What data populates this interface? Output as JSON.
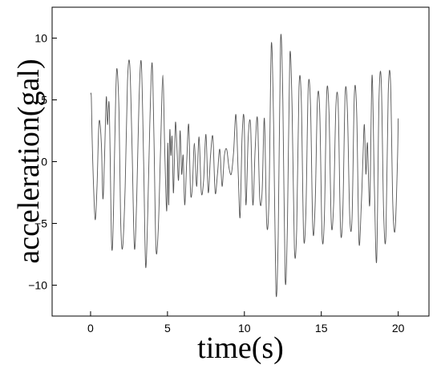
{
  "chart_data": {
    "type": "line",
    "xlabel": "time(s)",
    "ylabel": "acceleration(gal)",
    "xlim": [
      -2.5,
      22
    ],
    "ylim": [
      -12.5,
      12.5
    ],
    "xticks": [
      0,
      5,
      10,
      15,
      20
    ],
    "xtick_labels": [
      "0",
      "5",
      "10",
      "15",
      "20"
    ],
    "yticks": [
      10,
      5,
      0,
      -5,
      -10
    ],
    "ytick_labels": [
      "10",
      "5",
      "0",
      "−5",
      "−10"
    ],
    "grid": false,
    "series": [
      {
        "color": "#555555",
        "x": [
          0.0,
          0.05,
          0.1,
          0.18,
          0.3,
          0.42,
          0.55,
          0.7,
          0.8,
          0.9,
          1.02,
          1.1,
          1.2,
          1.28,
          1.35,
          1.42,
          1.5,
          1.58,
          1.7,
          1.85,
          1.95,
          2.08,
          2.25,
          2.4,
          2.55,
          2.7,
          2.85,
          3.0,
          3.15,
          3.3,
          3.45,
          3.58,
          3.72,
          3.85,
          4.0,
          4.12,
          4.25,
          4.4,
          4.55,
          4.7,
          4.82,
          4.95,
          5.02,
          5.08,
          5.15,
          5.22,
          5.3,
          5.38,
          5.45,
          5.52,
          5.62,
          5.72,
          5.82,
          5.92,
          6.02,
          6.12,
          6.25,
          6.38,
          6.5,
          6.62,
          6.75,
          6.9,
          7.05,
          7.2,
          7.35,
          7.5,
          7.65,
          7.8,
          7.95,
          8.1,
          8.25,
          8.4,
          8.55,
          8.7,
          8.85,
          9.0,
          9.15,
          9.3,
          9.45,
          9.6,
          9.72,
          9.85,
          9.98,
          10.1,
          10.25,
          10.4,
          10.55,
          10.7,
          10.85,
          11.0,
          11.15,
          11.3,
          11.45,
          11.6,
          11.75,
          11.9,
          12.05,
          12.2,
          12.35,
          12.5,
          12.65,
          12.8,
          12.95,
          13.1,
          13.25,
          13.4,
          13.55,
          13.7,
          13.85,
          14.0,
          14.15,
          14.3,
          14.45,
          14.6,
          14.75,
          14.9,
          15.05,
          15.2,
          15.35,
          15.5,
          15.65,
          15.8,
          15.95,
          16.1,
          16.25,
          16.4,
          16.55,
          16.7,
          16.85,
          17.0,
          17.15,
          17.3,
          17.45,
          17.6,
          17.7,
          17.8,
          17.9,
          18.0,
          18.15,
          18.3,
          18.45,
          18.6,
          18.75,
          18.9,
          19.05,
          19.2,
          19.35,
          19.5,
          19.65,
          19.8,
          19.95,
          20.0
        ],
        "y": [
          5.5,
          5.2,
          2.0,
          -1.5,
          -4.7,
          -2.0,
          3.2,
          1.5,
          -3.0,
          0.0,
          5.2,
          3.0,
          4.8,
          0.0,
          -6.0,
          -7.0,
          -3.5,
          2.0,
          7.5,
          4.0,
          -4.5,
          -7.0,
          -2.0,
          6.5,
          7.8,
          1.0,
          -7.0,
          -3.0,
          5.0,
          8.0,
          0.0,
          -8.5,
          -4.0,
          3.0,
          8.0,
          2.0,
          -7.0,
          -5.5,
          1.0,
          7.0,
          1.0,
          -4.0,
          1.5,
          -3.5,
          2.5,
          0.5,
          2.0,
          -2.5,
          0.0,
          3.2,
          1.0,
          -1.5,
          2.5,
          -1.0,
          0.5,
          -3.5,
          0.0,
          3.0,
          -2.5,
          -2.0,
          1.5,
          -2.0,
          2.0,
          -2.5,
          -1.5,
          2.2,
          -2.5,
          0.5,
          2.0,
          -2.5,
          -1.0,
          1.0,
          -2.0,
          0.5,
          1.0,
          -0.5,
          -1.0,
          0.8,
          3.8,
          -1.0,
          -4.5,
          2.0,
          3.5,
          -3.5,
          2.0,
          3.0,
          -3.5,
          1.0,
          3.5,
          -3.0,
          -2.5,
          3.5,
          -5.0,
          -3.0,
          9.5,
          3.0,
          -10.5,
          -6.0,
          9.8,
          5.0,
          -9.5,
          -5.0,
          8.5,
          4.5,
          -7.0,
          -5.5,
          6.0,
          5.0,
          -6.0,
          -4.0,
          6.0,
          4.5,
          -5.5,
          -3.5,
          5.0,
          4.0,
          -6.0,
          -4.5,
          5.5,
          4.0,
          -5.0,
          -3.5,
          4.5,
          4.5,
          -5.5,
          -4.0,
          5.5,
          4.0,
          -4.5,
          -4.5,
          5.5,
          4.0,
          -6.5,
          -3.5,
          0.0,
          3.0,
          -1.0,
          1.5,
          -3.5,
          7.0,
          -2.0,
          -8.0,
          5.0,
          6.5,
          -4.0,
          -6.0,
          5.5,
          6.5,
          -3.5,
          -5.5,
          0.0,
          3.5
        ]
      }
    ]
  }
}
